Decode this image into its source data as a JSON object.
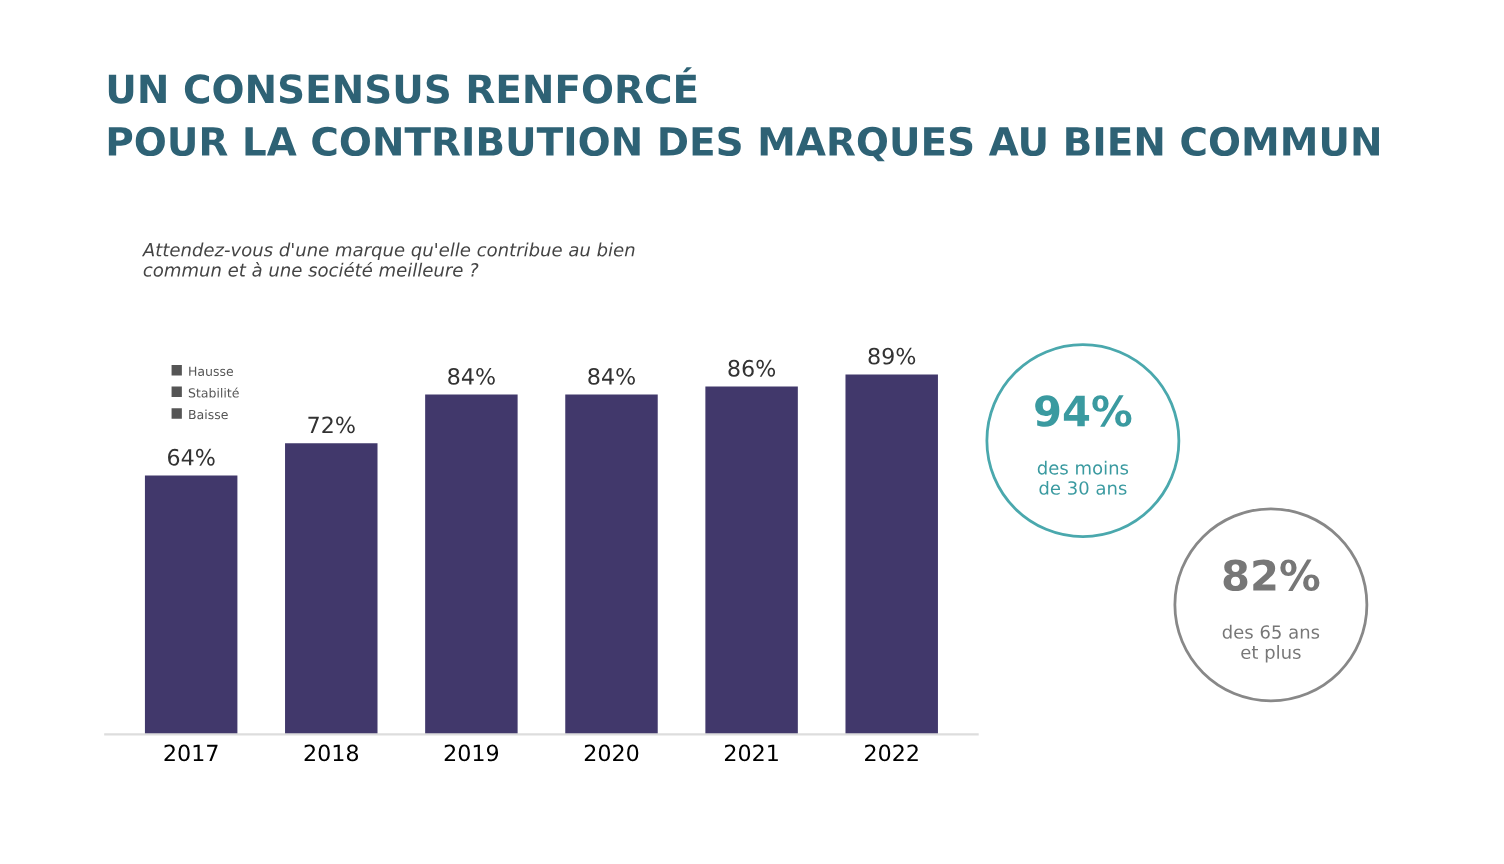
{
  "chart_data": {
    "type": "bar",
    "title": "UN CONSENSUS RENFORCÉ\nPOUR LA CONTRIBUTION DES MARQUES AU BIEN COMMUN",
    "subtitle": "Attendez-vous d'une marque qu'elle contribue au bien\ncommun et à une société meilleure ?",
    "categories": [
      "2017",
      "2018",
      "2019",
      "2020",
      "2021",
      "2022"
    ],
    "values": [
      64,
      72,
      84,
      84,
      86,
      89
    ],
    "color": "#41386b",
    "value_labels": [
      "64%",
      "72%",
      "84%",
      "84%",
      "86%",
      "89%"
    ],
    "annotations": [
      "Hausse",
      "Stabilité",
      "Baisse",
      "94%\ndes moins\nde 30 ans",
      "82%\ndes 65 ans\net plus"
    ]
  }
}
